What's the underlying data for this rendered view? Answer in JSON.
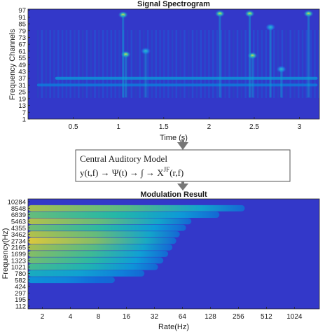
{
  "chart_data": [
    {
      "type": "heatmap",
      "title": "Signal Spectrogram",
      "xlabel": "Time (s)",
      "ylabel": "Frequency Channels",
      "xlim": [
        0,
        3.22
      ],
      "ylim": [
        1,
        98
      ],
      "x_ticks": [
        0.5,
        1,
        1.5,
        2,
        2.5,
        3
      ],
      "y_ticks": [
        1,
        7,
        13,
        19,
        25,
        31,
        37,
        43,
        49,
        55,
        61,
        67,
        73,
        79,
        85,
        91,
        97
      ],
      "colormap": "parula",
      "features": [
        {
          "kind": "band",
          "t0": 0.3,
          "t1": 3.2,
          "f": 37,
          "level": 0.35
        },
        {
          "kind": "band",
          "t0": 0.1,
          "t1": 3.2,
          "f": 31,
          "level": 0.25
        },
        {
          "kind": "blob",
          "t": 1.05,
          "f": 93,
          "level": 0.95
        },
        {
          "kind": "blob",
          "t": 2.12,
          "f": 94,
          "level": 0.95
        },
        {
          "kind": "blob",
          "t": 2.45,
          "f": 94,
          "level": 0.85
        },
        {
          "kind": "blob",
          "t": 3.1,
          "f": 94,
          "level": 1.0
        },
        {
          "kind": "blob",
          "t": 1.08,
          "f": 58,
          "level": 0.9
        },
        {
          "kind": "blob",
          "t": 1.3,
          "f": 61,
          "level": 0.8
        },
        {
          "kind": "blob",
          "t": 2.48,
          "f": 57,
          "level": 0.9
        },
        {
          "kind": "blob",
          "t": 2.8,
          "f": 45,
          "level": 0.75
        },
        {
          "kind": "blob",
          "t": 2.68,
          "f": 82,
          "level": 0.6
        }
      ]
    },
    {
      "type": "heatmap",
      "title": "Modulation Result",
      "xlabel": "Rate(Hz)",
      "ylabel": "Frequency(Hz)",
      "x_scale": "log2",
      "xlim": [
        1.4,
        1900
      ],
      "x_ticks": [
        "2",
        "4",
        "8",
        "16",
        "32",
        "64",
        "128",
        "256",
        "512",
        "1024"
      ],
      "y_ticks": [
        "10284",
        "8548",
        "6839",
        "5463",
        "4355",
        "3462",
        "2734",
        "2165",
        "1699",
        "1323",
        "1021",
        "780",
        "582",
        "424",
        "297",
        "195",
        "112"
      ],
      "colormap": "parula",
      "bands": [
        {
          "f": 8548,
          "level": 0.8,
          "rolloff_hz": 300
        },
        {
          "f": 6839,
          "level": 0.7,
          "rolloff_hz": 160
        },
        {
          "f": 5463,
          "level": 0.82,
          "rolloff_hz": 80
        },
        {
          "f": 4355,
          "level": 0.72,
          "rolloff_hz": 70
        },
        {
          "f": 3462,
          "level": 0.82,
          "rolloff_hz": 60
        },
        {
          "f": 2734,
          "level": 0.88,
          "rolloff_hz": 55
        },
        {
          "f": 2165,
          "level": 0.8,
          "rolloff_hz": 50
        },
        {
          "f": 1699,
          "level": 0.75,
          "rolloff_hz": 45
        },
        {
          "f": 1323,
          "level": 0.72,
          "rolloff_hz": 40
        },
        {
          "f": 1021,
          "level": 0.65,
          "rolloff_hz": 35
        },
        {
          "f": 780,
          "level": 0.5,
          "rolloff_hz": 25
        },
        {
          "f": 582,
          "level": 0.35,
          "rolloff_hz": 12
        }
      ]
    }
  ],
  "model_box": {
    "title": "Central Auditory Model",
    "formula_main": "y(t,f) → Ψ(t) → ∫ → X",
    "formula_sup": "JF",
    "formula_tail": "(r,f)"
  }
}
